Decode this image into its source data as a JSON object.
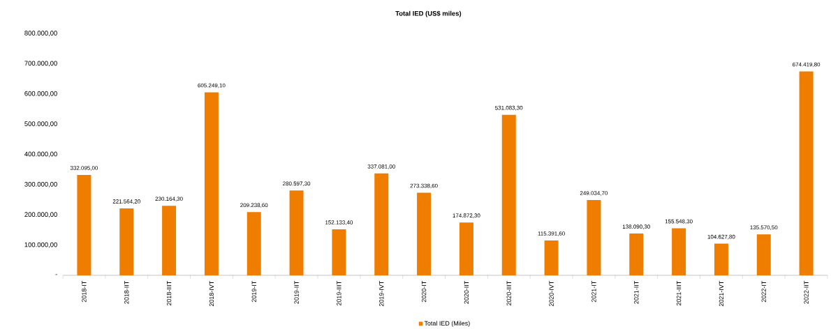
{
  "chart_data": {
    "type": "bar",
    "title": "Total IED (US$ miles)",
    "categories": [
      "2018-IT",
      "2018-IIT",
      "2018-IIIT",
      "2018-IVT",
      "2019-IT",
      "2019-IIT",
      "2019-IIIT",
      "2019-IVT",
      "2020-IT",
      "2020-IIT",
      "2020-IIIT",
      "2020-IVT",
      "2021-IT",
      "2021-IIT",
      "2021-IIIT",
      "2021-IVT",
      "2022-IT",
      "2022-IIT"
    ],
    "series": [
      {
        "name": "Total IED (Miles)",
        "color": "#ef7d00",
        "values": [
          332095.0,
          221564.2,
          230164.3,
          605249.1,
          209238.6,
          280597.3,
          152133.4,
          337081.0,
          273338.6,
          174872.3,
          531083.3,
          115391.6,
          249034.7,
          138090.3,
          155548.3,
          104627.8,
          135570.5,
          674419.8
        ],
        "value_labels": [
          "332.095,00",
          "221.564,20",
          "230.164,30",
          "605.249,10",
          "209.238,60",
          "280.597,30",
          "152.133,40",
          "337.081,00",
          "273.338,60",
          "174.872,30",
          "531.083,30",
          "115.391,60",
          "249.034,70",
          "138.090,30",
          "155.548,30",
          "104.627,80",
          "135.570,50",
          "674.419,80"
        ]
      }
    ],
    "ylim": [
      0,
      800000
    ],
    "yticks": [
      {
        "value": 0,
        "label": "-"
      },
      {
        "value": 100000,
        "label": "100.000,00"
      },
      {
        "value": 200000,
        "label": "200.000,00"
      },
      {
        "value": 300000,
        "label": "300.000,00"
      },
      {
        "value": 400000,
        "label": "400.000,00"
      },
      {
        "value": 500000,
        "label": "500.000,00"
      },
      {
        "value": 600000,
        "label": "600.000,00"
      },
      {
        "value": 700000,
        "label": "700.000,00"
      },
      {
        "value": 800000,
        "label": "800.000,00"
      }
    ],
    "grid": false,
    "legend": "bottom"
  }
}
